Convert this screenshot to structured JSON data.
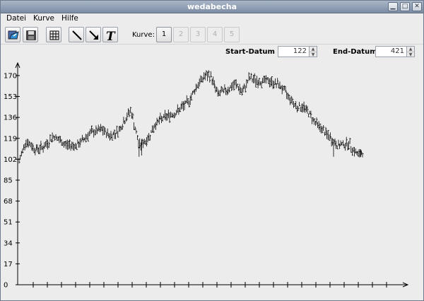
{
  "window": {
    "title": "wedabecha"
  },
  "menu": [
    {
      "label": "Datei"
    },
    {
      "label": "Kurve"
    },
    {
      "label": "Hilfe"
    }
  ],
  "toolbar": {
    "icons": [
      "open-icon",
      "save-icon",
      "grid-icon",
      "line-icon",
      "trend-arrow-icon",
      "text-tool-icon"
    ],
    "kurve_label": "Kurve:",
    "kurve_buttons": [
      "1",
      "2",
      "3",
      "4",
      "5"
    ],
    "active_kurve": "1"
  },
  "range": {
    "start_label": "Start-Datum",
    "start_value": "122",
    "end_label": "End-Datum",
    "end_value": "421"
  },
  "chart_data": {
    "type": "ohlc",
    "title": "",
    "xlabel": "",
    "ylabel": "",
    "ylim": [
      0,
      178
    ],
    "yticks": [
      0,
      17,
      34,
      51,
      68,
      85,
      102,
      119,
      136,
      153,
      170
    ],
    "x_tick_count": 26,
    "point_count": 300,
    "trend": [
      [
        0,
        100
      ],
      [
        8,
        117
      ],
      [
        20,
        110
      ],
      [
        30,
        112
      ],
      [
        42,
        121
      ],
      [
        55,
        114
      ],
      [
        70,
        113
      ],
      [
        85,
        123
      ],
      [
        100,
        126
      ],
      [
        110,
        121
      ],
      [
        120,
        125
      ],
      [
        135,
        142
      ],
      [
        145,
        113
      ],
      [
        155,
        118
      ],
      [
        165,
        131
      ],
      [
        175,
        136
      ],
      [
        190,
        140
      ],
      [
        205,
        149
      ],
      [
        215,
        162
      ],
      [
        225,
        170
      ],
      [
        232,
        169
      ],
      [
        240,
        155
      ],
      [
        250,
        158
      ],
      [
        262,
        163
      ],
      [
        270,
        156
      ],
      [
        278,
        168
      ],
      [
        290,
        165
      ],
      [
        300,
        166
      ],
      [
        315,
        162
      ],
      [
        335,
        145
      ],
      [
        345,
        144
      ],
      [
        358,
        132
      ],
      [
        372,
        122
      ],
      [
        385,
        113
      ],
      [
        398,
        115
      ],
      [
        410,
        105
      ],
      [
        415,
        108
      ]
    ],
    "x_range": [
      0,
      415
    ],
    "color": "#000000"
  }
}
